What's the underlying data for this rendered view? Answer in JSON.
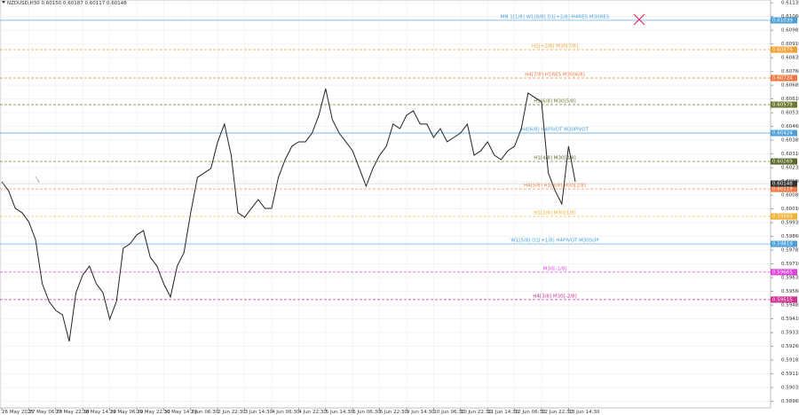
{
  "chart_data": {
    "type": "line",
    "title": "NZDUSD,H30  0.60150 0.60187 0.60117 0.60148",
    "categories": [
      "26 May 2025",
      null,
      null,
      null,
      "27 May 06:30",
      null,
      null,
      null,
      "27 May 22:30",
      null,
      null,
      null,
      "28 May 14:30",
      null,
      null,
      null,
      "29 May 06:30",
      null,
      null,
      null,
      "29 May 22:30",
      null,
      null,
      null,
      "30 May 14:30",
      null,
      null,
      null,
      "2 Jun 06:30",
      null,
      null,
      null,
      "2 Jun 22:30",
      null,
      null,
      null,
      "3 Jun 14:30",
      null,
      null,
      null,
      "4 Jun 06:30",
      null,
      null,
      null,
      "4 Jun 22:30",
      null,
      null,
      null,
      "5 Jun 14:30",
      null,
      null,
      null,
      "6 Jun 06:30",
      null,
      null,
      null,
      "6 Jun 22:30",
      null,
      null,
      null,
      "9 Jun 14:30",
      null,
      null,
      null,
      "10 Jun 06:30",
      null,
      null,
      null,
      "10 Jun 22:30",
      null,
      null,
      null,
      "11 Jun 14:30",
      null,
      null,
      null,
      "12 Jun 06:30",
      null,
      null,
      null,
      "12 Jun 22:30",
      null,
      null,
      null,
      "13 Jun 14:30",
      null
    ],
    "series": [
      {
        "color": "#222222",
        "values": [
          0.60158,
          0.6011,
          0.60013,
          0.59989,
          0.5994,
          0.59843,
          0.59602,
          0.59505,
          0.59456,
          0.59432,
          0.59287,
          0.59553,
          0.5965,
          0.59698,
          0.59602,
          0.59553,
          0.59408,
          0.59505,
          0.59795,
          0.59819,
          0.59868,
          0.59892,
          0.59747,
          0.59698,
          0.59602,
          0.59529,
          0.59698,
          0.59771,
          0.59989,
          0.60182,
          0.60206,
          0.60231,
          0.60376,
          0.60473,
          0.60303,
          0.59989,
          0.59964,
          0.60013,
          0.60061,
          0.60013,
          0.60013,
          0.60182,
          0.60279,
          0.60352,
          0.60376,
          0.60376,
          0.60424,
          0.60521,
          0.60666,
          0.60497,
          0.60424,
          0.60376,
          0.60327,
          0.60231,
          0.60134,
          0.60231,
          0.60303,
          0.60352,
          0.60473,
          0.60448,
          0.60521,
          0.60545,
          0.60473,
          0.60473,
          0.604,
          0.60448,
          0.60376,
          0.604,
          0.60424,
          0.60473,
          0.60303,
          0.60327,
          0.60376,
          0.60303,
          0.60279,
          0.60327,
          0.60352,
          0.60448,
          0.60642,
          0.60618,
          0.60594,
          0.60206,
          0.6011,
          0.60037,
          0.60352,
          0.60158
        ]
      }
    ],
    "ylim": [
      0.58924,
      0.6115
    ],
    "yticks": [
      {
        "value": 0.61135,
        "label": "0.61135"
      },
      {
        "value": 0.6106,
        "label": "0.61060"
      },
      {
        "value": 0.60985,
        "label": "0.60985"
      },
      {
        "value": 0.6091,
        "label": "0.60910"
      },
      {
        "value": 0.60835,
        "label": "0.60835"
      },
      {
        "value": 0.6076,
        "label": "0.60760"
      },
      {
        "value": 0.60685,
        "label": "0.60685"
      },
      {
        "value": 0.6061,
        "label": "0.60610"
      },
      {
        "value": 0.60535,
        "label": "0.60535"
      },
      {
        "value": 0.6046,
        "label": "0.60460"
      },
      {
        "value": 0.60385,
        "label": "0.60385"
      },
      {
        "value": 0.6031,
        "label": "0.60310"
      },
      {
        "value": 0.60235,
        "label": "0.60235"
      },
      {
        "value": 0.6016,
        "label": "0.60160"
      },
      {
        "value": 0.60085,
        "label": "0.60085"
      },
      {
        "value": 0.6001,
        "label": "0.60010"
      },
      {
        "value": 0.59935,
        "label": "0.59935"
      },
      {
        "value": 0.5986,
        "label": "0.59860"
      },
      {
        "value": 0.59785,
        "label": "0.59785"
      },
      {
        "value": 0.5971,
        "label": "0.59710"
      },
      {
        "value": 0.59635,
        "label": "0.59635"
      },
      {
        "value": 0.5956,
        "label": "0.59560"
      },
      {
        "value": 0.59485,
        "label": "0.59485"
      },
      {
        "value": 0.5941,
        "label": "0.59410"
      },
      {
        "value": 0.59335,
        "label": "0.59335"
      },
      {
        "value": 0.5926,
        "label": "0.59260"
      },
      {
        "value": 0.59185,
        "label": "0.59185"
      },
      {
        "value": 0.5911,
        "label": "0.59110"
      },
      {
        "value": 0.59035,
        "label": "0.59035"
      },
      {
        "value": 0.5896,
        "label": "0.58960"
      }
    ],
    "grid": true,
    "levels": [
      {
        "label": "MN 1[1/8] W1[8/8] D1[+2/8] H4RES M30RES",
        "color": "#4a9fd8",
        "value": 0.61039
      },
      {
        "label": "H1[+2/8] M30[7/8]",
        "color": "#f0a030",
        "value": 0.60879
      },
      {
        "label": "H4[7/8] H1RES M30[6/8]",
        "color": "#f07840",
        "value": 0.60724
      },
      {
        "label": "H1[6/8] M30[5/8]",
        "color": "#6b7a30",
        "value": 0.60579
      },
      {
        "label": "H4[6/8] H4PIVOT M30PIVOT",
        "color": "#4a9fd8",
        "value": 0.60424
      },
      {
        "label": "H1[4/8] M30[3/8]",
        "color": "#5a6a28",
        "value": 0.60269
      },
      {
        "label": "H4[5/8] H1[3/8] M30[2/8]",
        "color": "#f07840",
        "value": 0.60119
      },
      {
        "label": "H1[2/8] M30[1/8]",
        "color": "#f0b030",
        "value": 0.59969
      },
      {
        "label": "W1[5/8] D1[+1/8] H4PIVOT M30SUP",
        "color": "#4a9fd8",
        "value": 0.59819
      },
      {
        "label": "M30[-1/8]",
        "color": "#e040e0",
        "value": 0.59665
      },
      {
        "label": "H4[3/8] M30[-2/8]",
        "color": "#d03090",
        "value": 0.59515
      }
    ],
    "current_price": 0.60148
  }
}
